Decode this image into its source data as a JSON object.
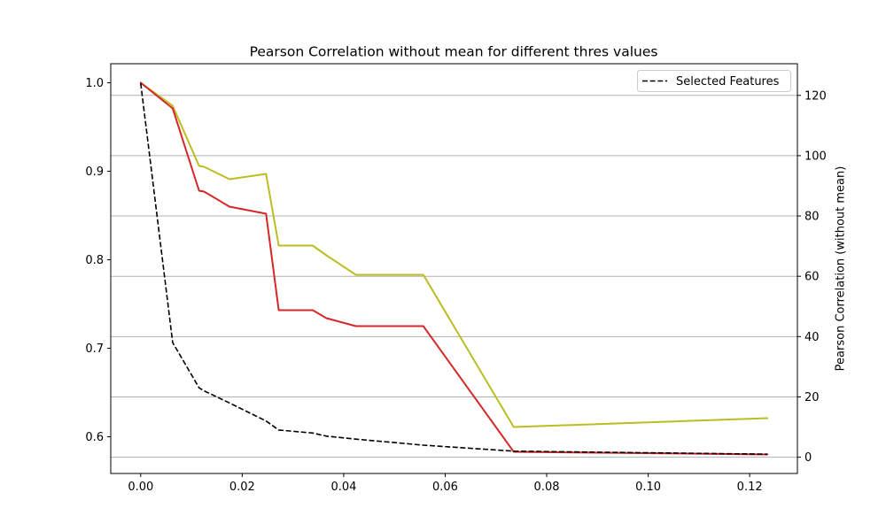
{
  "chart_data": {
    "type": "line",
    "title": "Pearson Correlation without mean for different thres values",
    "xlabel": "",
    "ylabel_left": "",
    "ylabel_right": "Pearson Correlation (without mean)",
    "xlim": [
      -0.0059,
      0.1294
    ],
    "ylim_left": [
      0.5585,
      1.0215
    ],
    "ylim_right": [
      -5.4,
      130.5
    ],
    "xticks": [
      "0.00",
      "0.02",
      "0.04",
      "0.06",
      "0.08",
      "0.10",
      "0.12"
    ],
    "xtick_values": [
      0,
      0.02,
      0.04,
      0.06,
      0.08,
      0.1,
      0.12
    ],
    "yticks_left": [
      "0.6",
      "0.7",
      "0.8",
      "0.9",
      "1.0"
    ],
    "ytick_values_left": [
      0.6,
      0.7,
      0.8,
      0.9,
      1.0
    ],
    "yticks_right": [
      "0",
      "20",
      "40",
      "60",
      "80",
      "100",
      "120"
    ],
    "ytick_values_right": [
      0,
      20,
      40,
      60,
      80,
      100,
      120
    ],
    "grid": "horizontal-right-axis",
    "legend_position": "top-right",
    "colors": {
      "red": "#d62728",
      "olive": "#bcbd22",
      "dashed": "#000000",
      "grid": "#b0b0b0"
    },
    "series": [
      {
        "name": "",
        "axis": "left",
        "style": "solid",
        "color": "#bcbd22",
        "x": [
          0.0,
          0.0063,
          0.0115,
          0.0125,
          0.0175,
          0.0247,
          0.0272,
          0.0339,
          0.0366,
          0.0424,
          0.0557,
          0.0735,
          0.1235
        ],
        "y": [
          1.0,
          0.974,
          0.906,
          0.905,
          0.891,
          0.897,
          0.816,
          0.816,
          0.805,
          0.783,
          0.783,
          0.611,
          0.621
        ]
      },
      {
        "name": "",
        "axis": "left",
        "style": "solid",
        "color": "#d62728",
        "x": [
          0.0,
          0.0063,
          0.0115,
          0.0125,
          0.0175,
          0.0247,
          0.0272,
          0.0339,
          0.0366,
          0.0424,
          0.0557,
          0.0735,
          0.1235
        ],
        "y": [
          1.0,
          0.971,
          0.878,
          0.877,
          0.86,
          0.852,
          0.743,
          0.743,
          0.734,
          0.725,
          0.725,
          0.583,
          0.58
        ]
      },
      {
        "name": "Selected Features",
        "axis": "right",
        "style": "dashed",
        "color": "#000000",
        "x": [
          0.0,
          0.0063,
          0.0115,
          0.0125,
          0.0175,
          0.0247,
          0.0272,
          0.0339,
          0.0366,
          0.0424,
          0.0557,
          0.0735,
          0.1235
        ],
        "y": [
          124,
          38,
          23,
          22,
          18,
          12,
          9,
          8,
          7,
          6,
          4,
          2,
          1
        ]
      }
    ],
    "legend": [
      {
        "label": "Selected Features",
        "style": "dashed",
        "color": "#000000"
      }
    ]
  }
}
